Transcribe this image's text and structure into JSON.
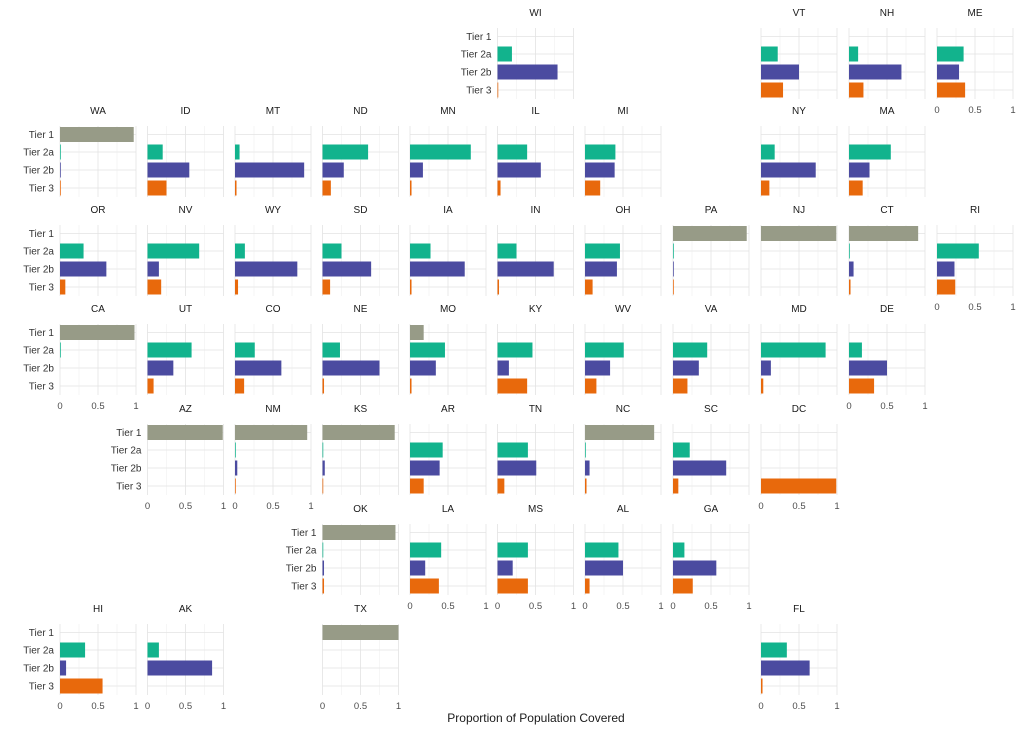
{
  "chart_data": {
    "type": "bar",
    "orientation": "horizontal",
    "layout": "geofacet-grid",
    "xlabel": "Proportion of Population Covered",
    "ylabel": "",
    "xlim": [
      0,
      1
    ],
    "x_ticks": [
      "0",
      "0.5",
      "1"
    ],
    "grid": true,
    "categories": [
      "Tier 1",
      "Tier 2a",
      "Tier 2b",
      "Tier 3"
    ],
    "colors": {
      "Tier 1": "#979b87",
      "Tier 2a": "#12b38d",
      "Tier 2b": "#4b4ba0",
      "Tier 3": "#e8690c"
    },
    "facets": [
      {
        "state": "WI",
        "row": 0,
        "col": 5,
        "values": [
          0,
          0.19,
          0.79,
          0.01
        ]
      },
      {
        "state": "VT",
        "row": 0,
        "col": 8,
        "values": [
          0,
          0.22,
          0.5,
          0.29
        ]
      },
      {
        "state": "NH",
        "row": 0,
        "col": 9,
        "values": [
          0,
          0.12,
          0.69,
          0.19
        ]
      },
      {
        "state": "ME",
        "row": 0,
        "col": 10,
        "values": [
          0,
          0.35,
          0.29,
          0.37
        ]
      },
      {
        "state": "WA",
        "row": 1,
        "col": 0,
        "values": [
          0.97,
          0.01,
          0.01,
          0.01
        ]
      },
      {
        "state": "ID",
        "row": 1,
        "col": 1,
        "values": [
          0,
          0.2,
          0.55,
          0.25
        ]
      },
      {
        "state": "MT",
        "row": 1,
        "col": 2,
        "values": [
          0,
          0.06,
          0.91,
          0.02
        ]
      },
      {
        "state": "ND",
        "row": 1,
        "col": 3,
        "values": [
          0,
          0.6,
          0.28,
          0.11
        ]
      },
      {
        "state": "MN",
        "row": 1,
        "col": 4,
        "values": [
          0,
          0.8,
          0.17,
          0.02
        ]
      },
      {
        "state": "IL",
        "row": 1,
        "col": 5,
        "values": [
          0,
          0.39,
          0.57,
          0.04
        ]
      },
      {
        "state": "MI",
        "row": 1,
        "col": 6,
        "values": [
          0,
          0.4,
          0.39,
          0.2
        ]
      },
      {
        "state": "NY",
        "row": 1,
        "col": 8,
        "values": [
          0,
          0.18,
          0.72,
          0.11
        ]
      },
      {
        "state": "MA",
        "row": 1,
        "col": 9,
        "values": [
          0,
          0.55,
          0.27,
          0.18
        ]
      },
      {
        "state": "OR",
        "row": 2,
        "col": 0,
        "values": [
          0,
          0.31,
          0.61,
          0.07
        ]
      },
      {
        "state": "NV",
        "row": 2,
        "col": 1,
        "values": [
          0,
          0.68,
          0.15,
          0.18
        ]
      },
      {
        "state": "WY",
        "row": 2,
        "col": 2,
        "values": [
          0,
          0.13,
          0.82,
          0.04
        ]
      },
      {
        "state": "SD",
        "row": 2,
        "col": 3,
        "values": [
          0,
          0.25,
          0.64,
          0.1
        ]
      },
      {
        "state": "IA",
        "row": 2,
        "col": 4,
        "values": [
          0,
          0.27,
          0.72,
          0.02
        ]
      },
      {
        "state": "IN",
        "row": 2,
        "col": 5,
        "values": [
          0,
          0.25,
          0.74,
          0.02
        ]
      },
      {
        "state": "OH",
        "row": 2,
        "col": 6,
        "values": [
          0,
          0.46,
          0.42,
          0.1
        ]
      },
      {
        "state": "PA",
        "row": 2,
        "col": 7,
        "values": [
          0.97,
          0.01,
          0.01,
          0.01
        ]
      },
      {
        "state": "NJ",
        "row": 2,
        "col": 8,
        "values": [
          0.99,
          0,
          0,
          0
        ]
      },
      {
        "state": "CT",
        "row": 2,
        "col": 9,
        "values": [
          0.91,
          0.01,
          0.06,
          0.02
        ]
      },
      {
        "state": "RI",
        "row": 2,
        "col": 10,
        "values": [
          0,
          0.55,
          0.23,
          0.24
        ]
      },
      {
        "state": "CA",
        "row": 3,
        "col": 0,
        "values": [
          0.98,
          0.01,
          0,
          0
        ]
      },
      {
        "state": "UT",
        "row": 3,
        "col": 1,
        "values": [
          0,
          0.58,
          0.34,
          0.08
        ]
      },
      {
        "state": "CO",
        "row": 3,
        "col": 2,
        "values": [
          0,
          0.26,
          0.61,
          0.12
        ]
      },
      {
        "state": "NE",
        "row": 3,
        "col": 3,
        "values": [
          0,
          0.23,
          0.75,
          0.02
        ]
      },
      {
        "state": "MO",
        "row": 3,
        "col": 4,
        "values": [
          0.18,
          0.46,
          0.34,
          0.02
        ]
      },
      {
        "state": "KY",
        "row": 3,
        "col": 5,
        "values": [
          0,
          0.46,
          0.15,
          0.39
        ]
      },
      {
        "state": "WV",
        "row": 3,
        "col": 6,
        "values": [
          0,
          0.51,
          0.33,
          0.15
        ]
      },
      {
        "state": "VA",
        "row": 3,
        "col": 7,
        "values": [
          0,
          0.45,
          0.34,
          0.19
        ]
      },
      {
        "state": "MD",
        "row": 3,
        "col": 8,
        "values": [
          0,
          0.85,
          0.13,
          0.03
        ]
      },
      {
        "state": "DE",
        "row": 3,
        "col": 9,
        "values": [
          0,
          0.17,
          0.5,
          0.33
        ]
      },
      {
        "state": "AZ",
        "row": 4,
        "col": 1,
        "values": [
          0.99,
          0,
          0,
          0
        ]
      },
      {
        "state": "NM",
        "row": 4,
        "col": 2,
        "values": [
          0.95,
          0.01,
          0.03,
          0.01
        ]
      },
      {
        "state": "KS",
        "row": 4,
        "col": 3,
        "values": [
          0.95,
          0.01,
          0.03,
          0.01
        ]
      },
      {
        "state": "AR",
        "row": 4,
        "col": 4,
        "values": [
          0,
          0.43,
          0.39,
          0.18
        ]
      },
      {
        "state": "TN",
        "row": 4,
        "col": 5,
        "values": [
          0,
          0.4,
          0.51,
          0.09
        ]
      },
      {
        "state": "NC",
        "row": 4,
        "col": 6,
        "values": [
          0.91,
          0.01,
          0.06,
          0.02
        ]
      },
      {
        "state": "SC",
        "row": 4,
        "col": 7,
        "values": [
          0,
          0.22,
          0.7,
          0.07
        ]
      },
      {
        "state": "DC",
        "row": 4,
        "col": 8,
        "values": [
          0,
          0,
          0,
          0.99
        ]
      },
      {
        "state": "OK",
        "row": 5,
        "col": 3,
        "values": [
          0.96,
          0.01,
          0.02,
          0.02
        ]
      },
      {
        "state": "LA",
        "row": 5,
        "col": 4,
        "values": [
          0,
          0.41,
          0.2,
          0.38
        ]
      },
      {
        "state": "MS",
        "row": 5,
        "col": 5,
        "values": [
          0,
          0.4,
          0.2,
          0.4
        ]
      },
      {
        "state": "AL",
        "row": 5,
        "col": 6,
        "values": [
          0,
          0.44,
          0.5,
          0.06
        ]
      },
      {
        "state": "GA",
        "row": 5,
        "col": 7,
        "values": [
          0,
          0.15,
          0.57,
          0.26
        ]
      },
      {
        "state": "HI",
        "row": 6,
        "col": 0,
        "values": [
          0,
          0.33,
          0.08,
          0.56
        ]
      },
      {
        "state": "AK",
        "row": 6,
        "col": 1,
        "values": [
          0,
          0.15,
          0.85,
          0
        ]
      },
      {
        "state": "TX",
        "row": 6,
        "col": 3,
        "values": [
          1.0,
          0,
          0,
          0
        ]
      },
      {
        "state": "FL",
        "row": 6,
        "col": 8,
        "values": [
          0,
          0.34,
          0.64,
          0.02
        ]
      }
    ]
  }
}
